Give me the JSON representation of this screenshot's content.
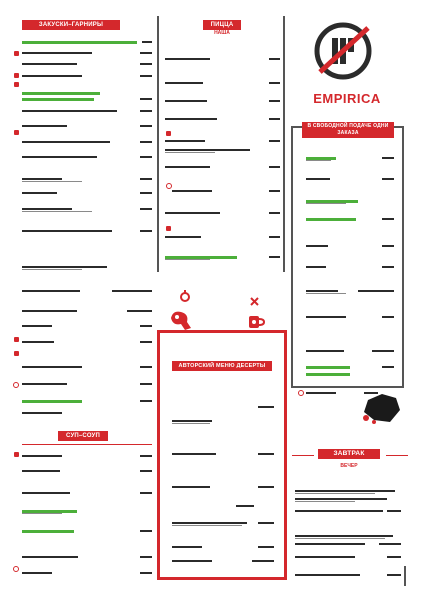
{
  "brand": {
    "name": "EMPIRICA",
    "colors": {
      "accent": "#d4282c",
      "green": "#4caf3a",
      "text": "#1a1a1a",
      "line": "#555555"
    }
  },
  "sections": {
    "top_left_banner": "ЗАКУСКИ–ГАРНИРЫ",
    "top_center_banner": "ПИЦЦА",
    "top_center_sub": "НАША",
    "right_box_banner": "В СВОБОДНОЙ ПОДАЧЕ ОДНИ ЗАКАЗА",
    "center_box_banner": "АВТОРСКИЙ МЕНЮ ДЕСЕРТЫ",
    "bottom_left_banner": "СУП–СОУП",
    "bottom_right_banner": "ЗАВТРАК",
    "bottom_right_sub": "ВЕЧЕР"
  },
  "icons": [
    "logo-emblem-icon",
    "pepper-icon",
    "hand-icon",
    "chili-icon",
    "cup-icon"
  ]
}
